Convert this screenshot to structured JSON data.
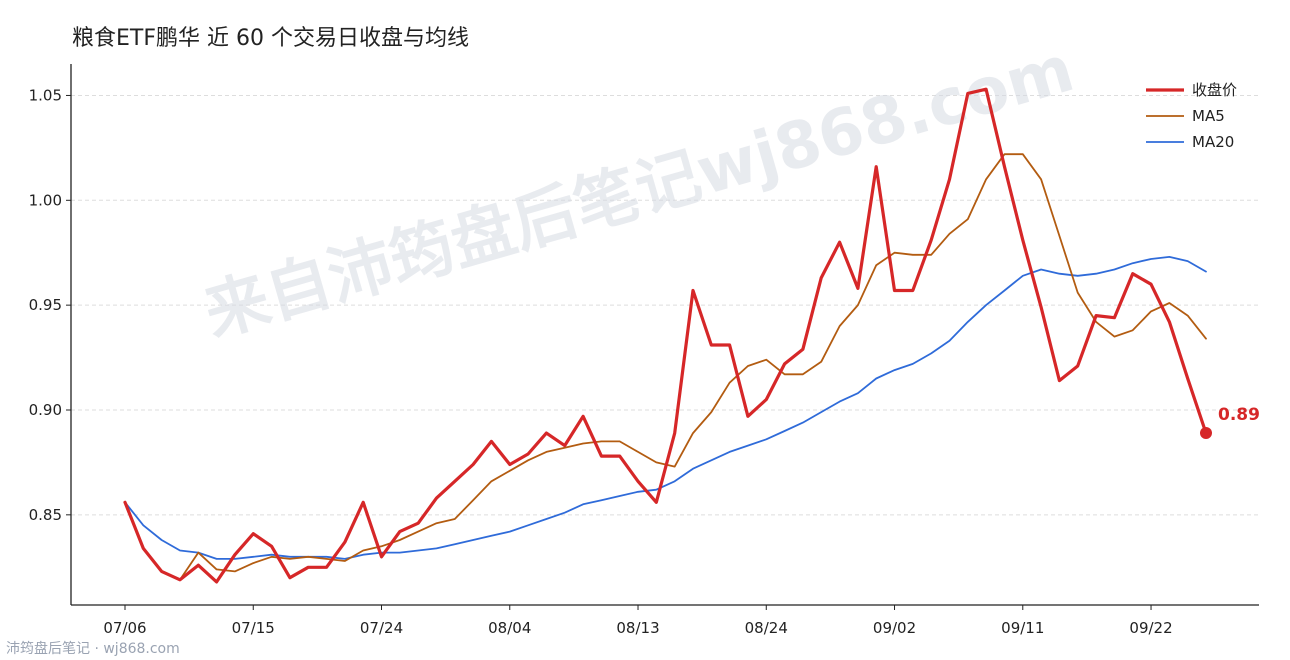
{
  "chart_data": {
    "type": "line",
    "title": "粮食ETF鹏华 近 60 个交易日收盘与均线",
    "xlabel": "",
    "ylabel": "",
    "ylim": [
      0.807,
      1.065
    ],
    "yticks": [
      "0.85",
      "0.90",
      "0.95",
      "1.00",
      "1.05"
    ],
    "xticks": [
      "07/06",
      "07/15",
      "07/24",
      "08/04",
      "08/13",
      "08/24",
      "09/02",
      "09/11",
      "09/22"
    ],
    "xtick_index": [
      0,
      7,
      14,
      21,
      28,
      35,
      42,
      49,
      56
    ],
    "grid": "horizontal dashed",
    "legend_position": "top-right",
    "series": [
      {
        "name": "收盘价",
        "color": "#d62728",
        "values": [
          0.856,
          0.834,
          0.823,
          0.819,
          0.826,
          0.818,
          0.831,
          0.841,
          0.835,
          0.82,
          0.825,
          0.825,
          0.837,
          0.856,
          0.83,
          0.842,
          0.846,
          0.858,
          0.866,
          0.874,
          0.885,
          0.874,
          0.879,
          0.889,
          0.883,
          0.897,
          0.878,
          0.878,
          0.866,
          0.856,
          0.889,
          0.957,
          0.931,
          0.931,
          0.897,
          0.905,
          0.922,
          0.929,
          0.963,
          0.98,
          0.958,
          1.016,
          0.957,
          0.957,
          0.981,
          1.01,
          1.051,
          1.053,
          1.016,
          0.981,
          0.949,
          0.914,
          0.921,
          0.945,
          0.944,
          0.965,
          0.96,
          0.942,
          0.915,
          0.889
        ]
      },
      {
        "name": "MA5",
        "color": "#b35c11",
        "values": [
          0.856,
          0.834,
          0.823,
          0.819,
          0.832,
          0.824,
          0.823,
          0.827,
          0.83,
          0.829,
          0.83,
          0.829,
          0.828,
          0.833,
          0.835,
          0.838,
          0.842,
          0.846,
          0.848,
          0.857,
          0.866,
          0.871,
          0.876,
          0.88,
          0.882,
          0.884,
          0.885,
          0.885,
          0.88,
          0.875,
          0.873,
          0.889,
          0.899,
          0.913,
          0.921,
          0.924,
          0.917,
          0.917,
          0.923,
          0.94,
          0.95,
          0.969,
          0.975,
          0.974,
          0.974,
          0.984,
          0.991,
          1.01,
          1.022,
          1.022,
          1.01,
          0.983,
          0.956,
          0.942,
          0.935,
          0.938,
          0.947,
          0.951,
          0.945,
          0.934
        ]
      },
      {
        "name": "MA20",
        "color": "#2f6bd9",
        "values": [
          0.856,
          0.845,
          0.838,
          0.833,
          0.832,
          0.829,
          0.829,
          0.83,
          0.831,
          0.83,
          0.83,
          0.83,
          0.829,
          0.831,
          0.832,
          0.832,
          0.833,
          0.834,
          0.836,
          0.838,
          0.84,
          0.842,
          0.845,
          0.848,
          0.851,
          0.855,
          0.857,
          0.859,
          0.861,
          0.862,
          0.866,
          0.872,
          0.876,
          0.88,
          0.883,
          0.886,
          0.89,
          0.894,
          0.899,
          0.904,
          0.908,
          0.915,
          0.919,
          0.922,
          0.927,
          0.933,
          0.942,
          0.95,
          0.957,
          0.964,
          0.967,
          0.965,
          0.964,
          0.965,
          0.967,
          0.97,
          0.972,
          0.973,
          0.971,
          0.966
        ]
      }
    ],
    "end_label": {
      "text": "0.89",
      "color": "#d62728"
    }
  },
  "watermark": {
    "text": "来自沛筠盘后笔记wj868.com"
  },
  "footer": {
    "text": "沛筠盘后笔记 · wj868.com"
  }
}
